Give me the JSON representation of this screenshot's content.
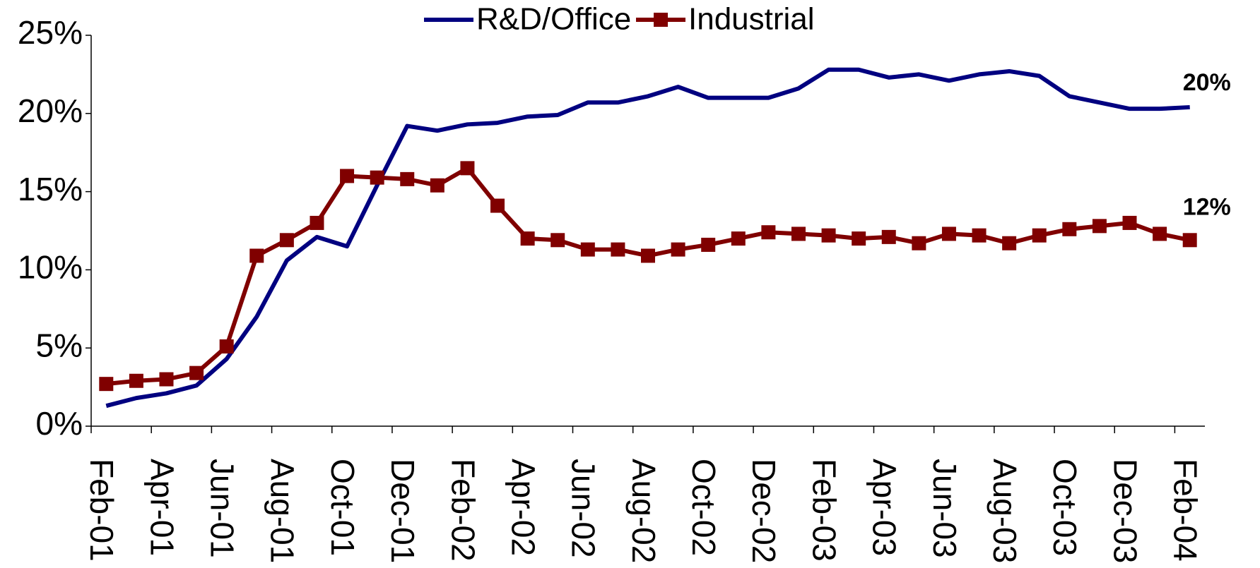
{
  "chart_data": {
    "type": "line",
    "categories": [
      "Feb-01",
      null,
      "Apr-01",
      null,
      "Jun-01",
      null,
      "Aug-01",
      null,
      "Oct-01",
      null,
      "Dec-01",
      null,
      "Feb-02",
      null,
      "Apr-02",
      null,
      "Jun-02",
      null,
      "Aug-02",
      null,
      "Oct-02",
      null,
      "Dec-02",
      null,
      "Feb-03",
      null,
      "Apr-03",
      null,
      "Jun-03",
      null,
      "Aug-03",
      null,
      "Oct-03",
      null,
      "Dec-03",
      null,
      "Feb-04"
    ],
    "series": [
      {
        "name": "R&D/Office",
        "color": "#000080",
        "marker": "none",
        "values": [
          1.3,
          1.8,
          2.1,
          2.6,
          4.3,
          7.0,
          10.6,
          12.1,
          11.5,
          15.4,
          19.2,
          18.9,
          19.3,
          19.4,
          19.8,
          19.9,
          20.7,
          20.7,
          21.1,
          21.7,
          21.0,
          21.0,
          21.0,
          21.6,
          22.8,
          22.8,
          22.3,
          22.5,
          22.1,
          22.5,
          22.7,
          22.4,
          21.1,
          20.7,
          20.3,
          20.3,
          20.4
        ]
      },
      {
        "name": "Industrial",
        "color": "#800000",
        "marker": "square",
        "values": [
          2.7,
          2.9,
          3.0,
          3.4,
          5.1,
          10.9,
          11.9,
          13.0,
          16.0,
          15.9,
          15.8,
          15.4,
          16.5,
          14.1,
          12.0,
          11.9,
          11.3,
          11.3,
          10.9,
          11.3,
          11.6,
          12.0,
          12.4,
          12.3,
          12.2,
          12.0,
          12.1,
          11.7,
          12.3,
          12.2,
          11.7,
          12.2,
          12.6,
          12.8,
          13.0,
          12.3,
          11.9
        ]
      }
    ],
    "annotations": [
      "20%",
      "12%"
    ],
    "ylim": [
      0,
      25
    ],
    "yticks": [
      {
        "value": 0,
        "label": "0%"
      },
      {
        "value": 5,
        "label": "5%"
      },
      {
        "value": 10,
        "label": "10%"
      },
      {
        "value": 15,
        "label": "15%"
      },
      {
        "value": 20,
        "label": "20%"
      },
      {
        "value": 25,
        "label": "25%"
      }
    ],
    "legend": "top"
  }
}
